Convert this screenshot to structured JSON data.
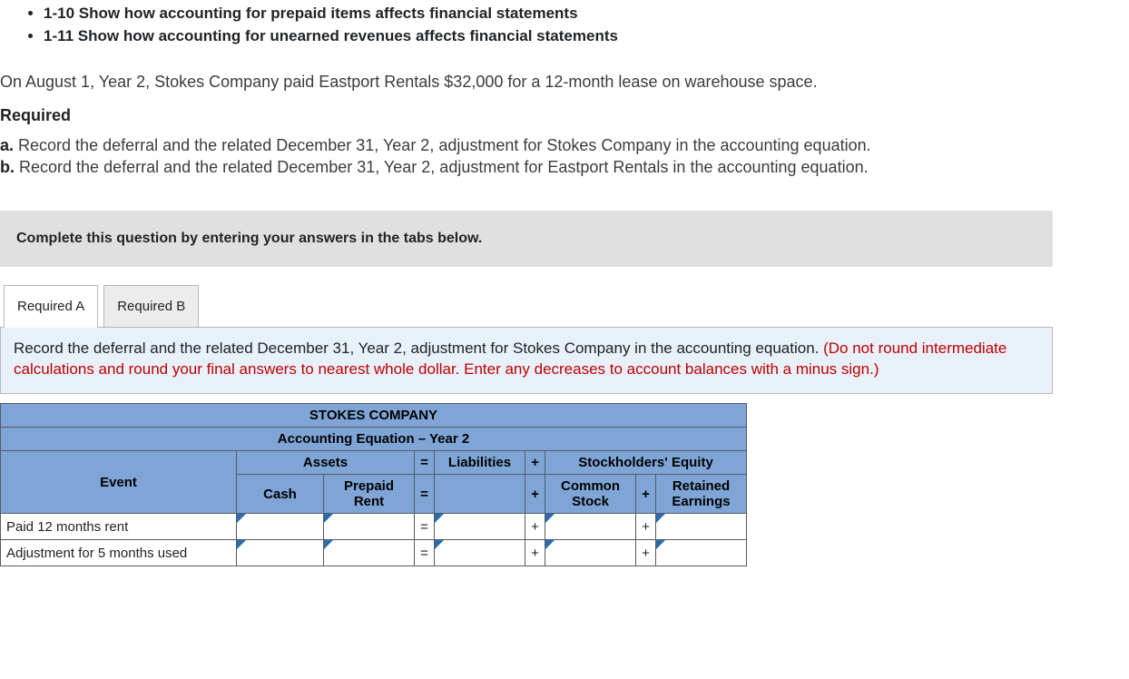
{
  "objectives": [
    "1-10 Show how accounting for prepaid items affects financial statements",
    "1-11 Show how accounting for unearned revenues affects financial statements"
  ],
  "scenario": "On August 1, Year 2, Stokes Company paid Eastport Rentals $32,000 for a 12-month lease on warehouse space.",
  "required_heading": "Required",
  "req_a_letter": "a.",
  "req_a_text": "Record the deferral and the related December 31, Year 2, adjustment for Stokes Company in the accounting equation.",
  "req_b_letter": "b.",
  "req_b_text": "Record the deferral and the related December 31, Year 2, adjustment for Eastport Rentals in the accounting equation.",
  "gray_instruction": "Complete this question by entering your answers in the tabs below.",
  "tabs": {
    "a": "Required A",
    "b": "Required B"
  },
  "panel": {
    "main": "Record the deferral and the related December 31, Year 2, adjustment for Stokes Company in the accounting equation. ",
    "red": "(Do not round intermediate calculations and round your final answers to nearest whole dollar. Enter any decreases to account balances with a minus sign.)"
  },
  "table": {
    "company": "STOKES COMPANY",
    "subtitle": "Accounting Equation – Year 2",
    "assets": "Assets",
    "eq": "=",
    "liabilities": "Liabilities",
    "plus": "+",
    "stockholders_equity": "Stockholders' Equity",
    "event": "Event",
    "cash": "Cash",
    "prepaid_rent": "Prepaid Rent",
    "common_stock": "Common Stock",
    "retained_earnings": "Retained Earnings",
    "row1": "Paid 12 months rent",
    "row2": "Adjustment for 5 months used",
    "header_bg": "#7ea5d6",
    "border_color": "#555b63"
  }
}
